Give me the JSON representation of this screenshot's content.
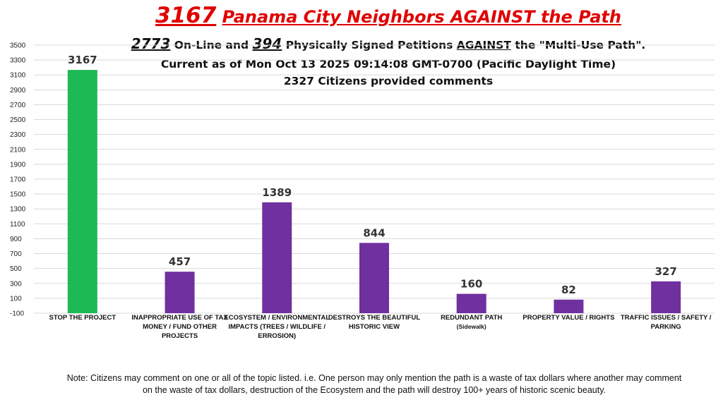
{
  "header": {
    "title_num": "3167",
    "title_rest": "Panama City Neighbors AGAINST the Path",
    "sub1_num1": "2773",
    "sub1_text1": "On-Line and",
    "sub1_num2": "394",
    "sub1_text2": "Physically Signed Petitions",
    "sub1_against": "AGAINST",
    "sub1_text3": "the \"Multi-Use Path\".",
    "sub2": "Current as of Mon Oct 13 2025 09:14:08 GMT-0700 (Pacific Daylight Time)",
    "sub3": "2327 Citizens provided comments"
  },
  "note": {
    "line1": "Note: Citizens may comment on one or all of the topic listed.  i.e. One person may only mention the path is a waste of tax dollars where another may comment",
    "line2": "on the waste of tax dollars, destruction of the Ecosystem and the path will destroy 100+ years of historic scenic beauty."
  },
  "chart_data": {
    "type": "bar",
    "categories": [
      "STOP THE PROJECT",
      "INAPPROPRIATE USE OF TAX MONEY / FUND OTHER PROJECTS",
      "ECOSYSTEM / ENVIRONMENTAL IMPACTS (TREES / WILDLIFE / ERROSION)",
      "DESTROYS THE BEAUTIFUL HISTORIC VIEW",
      "REDUNDANT PATH",
      "PROPERTY VALUE / RIGHTS",
      "TRAFFIC ISSUES / SAFETY / PARKING"
    ],
    "category_notes": [
      "",
      "",
      "",
      "",
      "(Sidewalk)",
      "",
      ""
    ],
    "values": [
      3167,
      457,
      1389,
      844,
      160,
      82,
      327
    ],
    "data_labels": [
      "3167",
      "457",
      "1389",
      "844",
      "160",
      "82",
      "327"
    ],
    "ylim": [
      -100,
      3500
    ],
    "yticks": [
      "-100",
      "100",
      "300",
      "500",
      "700",
      "900",
      "1100",
      "1300",
      "1500",
      "1700",
      "1900",
      "2100",
      "2300",
      "2500",
      "2700",
      "2900",
      "3100",
      "3300",
      "3500"
    ],
    "grid": true,
    "colors": {
      "first_bar": "#1db954",
      "other_bars": "#7030a0",
      "grid": "#d9d9d9"
    }
  }
}
